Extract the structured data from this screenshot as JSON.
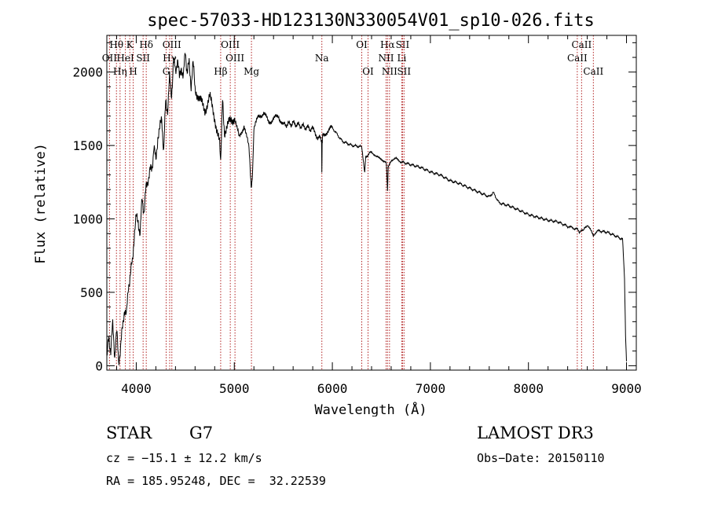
{
  "chart_data": {
    "type": "line",
    "title": "spec-57033-HD123130N330054V01_sp10-026.fits",
    "xlabel": "Wavelength (Å)",
    "ylabel": "Flux (relative)",
    "xlim": [
      3700,
      9100
    ],
    "ylim": [
      -30,
      2250
    ],
    "xticks": [
      4000,
      5000,
      6000,
      7000,
      8000,
      9000
    ],
    "yticks": [
      0,
      500,
      1000,
      1500,
      2000
    ],
    "series": [
      {
        "name": "flux",
        "x": [
          3700,
          3720,
          3740,
          3760,
          3780,
          3800,
          3820,
          3840,
          3860,
          3880,
          3900,
          3920,
          3940,
          3960,
          3980,
          4000,
          4020,
          4040,
          4060,
          4080,
          4100,
          4120,
          4140,
          4160,
          4180,
          4200,
          4220,
          4240,
          4260,
          4280,
          4300,
          4320,
          4340,
          4360,
          4380,
          4400,
          4420,
          4440,
          4460,
          4480,
          4500,
          4520,
          4540,
          4560,
          4580,
          4600,
          4650,
          4700,
          4750,
          4800,
          4850,
          4861,
          4880,
          4900,
          4950,
          5000,
          5050,
          5100,
          5150,
          5172,
          5183,
          5200,
          5250,
          5300,
          5350,
          5400,
          5450,
          5500,
          5600,
          5700,
          5800,
          5850,
          5890,
          5893,
          5896,
          5900,
          5950,
          6000,
          6100,
          6200,
          6300,
          6330,
          6340,
          6400,
          6450,
          6500,
          6550,
          6563,
          6570,
          6600,
          6650,
          6700,
          6800,
          6900,
          7000,
          7100,
          7200,
          7300,
          7400,
          7500,
          7600,
          7640,
          7700,
          7800,
          7900,
          8000,
          8100,
          8200,
          8300,
          8400,
          8498,
          8520,
          8542,
          8560,
          8600,
          8662,
          8700,
          8800,
          8900,
          8960,
          8980,
          8990,
          9000
        ],
        "values": [
          30,
          200,
          110,
          270,
          80,
          230,
          30,
          130,
          250,
          400,
          330,
          550,
          620,
          700,
          900,
          1000,
          1000,
          880,
          1150,
          1050,
          1200,
          1280,
          1320,
          1340,
          1500,
          1380,
          1570,
          1600,
          1700,
          1450,
          1800,
          1750,
          1950,
          1850,
          2080,
          2000,
          2100,
          1950,
          2050,
          1950,
          2150,
          2000,
          2050,
          1920,
          2050,
          1900,
          1800,
          1750,
          1820,
          1700,
          1500,
          1350,
          1800,
          1600,
          1650,
          1700,
          1550,
          1640,
          1480,
          1200,
          1250,
          1620,
          1700,
          1720,
          1660,
          1680,
          1700,
          1640,
          1650,
          1630,
          1610,
          1560,
          1540,
          1300,
          1520,
          1560,
          1600,
          1620,
          1530,
          1500,
          1490,
          1320,
          1420,
          1460,
          1420,
          1410,
          1380,
          1200,
          1360,
          1400,
          1410,
          1390,
          1370,
          1350,
          1320,
          1300,
          1260,
          1240,
          1210,
          1180,
          1150,
          1180,
          1110,
          1090,
          1060,
          1030,
          1010,
          990,
          980,
          950,
          930,
          900,
          920,
          920,
          960,
          890,
          920,
          910,
          880,
          860,
          600,
          200,
          30
        ]
      }
    ],
    "spectral_lines": [
      {
        "label": "Hθ",
        "x": 3798,
        "row": 0
      },
      {
        "label": "K",
        "x": 3934,
        "row": 0
      },
      {
        "label": "Hδ",
        "x": 4102,
        "row": 0
      },
      {
        "label": "OII",
        "x": 3727,
        "row": 1
      },
      {
        "label": "HeI",
        "x": 3889,
        "row": 1
      },
      {
        "label": "SII",
        "x": 4070,
        "row": 1
      },
      {
        "label": "Hη",
        "x": 3835,
        "row": 2
      },
      {
        "label": "H",
        "x": 3969,
        "row": 2
      },
      {
        "label": "OIII",
        "x": 4363,
        "row": 0
      },
      {
        "label": "Hγ",
        "x": 4341,
        "row": 1
      },
      {
        "label": "G",
        "x": 4305,
        "row": 2
      },
      {
        "label": "Hβ",
        "x": 4861,
        "row": 2
      },
      {
        "label": "OIII",
        "x": 4959,
        "row": 0
      },
      {
        "label": "OIII",
        "x": 5007,
        "row": 1
      },
      {
        "label": "Mg",
        "x": 5175,
        "row": 2
      },
      {
        "label": "Na",
        "x": 5893,
        "row": 1
      },
      {
        "label": "OI",
        "x": 6300,
        "row": 0
      },
      {
        "label": "OI",
        "x": 6364,
        "row": 2
      },
      {
        "label": "Hα",
        "x": 6563,
        "row": 0
      },
      {
        "label": "SII",
        "x": 6716,
        "row": 0
      },
      {
        "label": "NII",
        "x": 6548,
        "row": 1
      },
      {
        "label": "Li",
        "x": 6708,
        "row": 1
      },
      {
        "label": "NII",
        "x": 6583,
        "row": 2
      },
      {
        "label": "SII",
        "x": 6731,
        "row": 2
      },
      {
        "label": "CaII",
        "x": 8542,
        "row": 0
      },
      {
        "label": "CaII",
        "x": 8498,
        "row": 1
      },
      {
        "label": "CaII",
        "x": 8662,
        "row": 2
      }
    ]
  },
  "info": {
    "object_type": "STAR",
    "subclass": "G7",
    "survey": "LAMOST DR3",
    "cz": "cz = −15.1 ± 12.2 km/s",
    "obs_date": "Obs−Date: 20150110",
    "coords": "RA = 185.95248, DEC =  32.22539"
  },
  "colors": {
    "line_marker": "#b22222",
    "spectrum": "#000000"
  }
}
